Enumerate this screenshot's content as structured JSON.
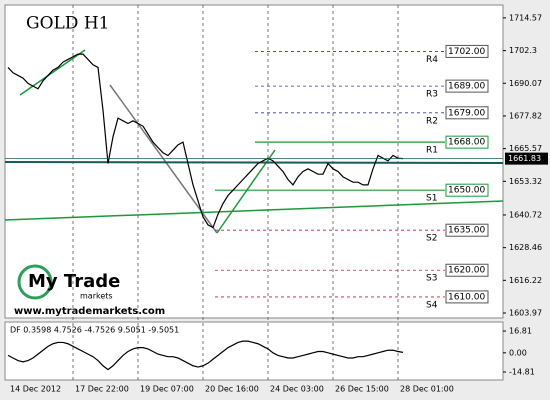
{
  "chart_data": {
    "type": "line",
    "title": "GOLD H1",
    "watermark": {
      "brand": "My Trade",
      "sub": "markets",
      "url": "www.mytrademarkets.com"
    },
    "price": {
      "name": "GOLD",
      "color": "#000000",
      "values": [
        1696,
        1694,
        1693,
        1692,
        1690,
        1689,
        1688,
        1691,
        1693,
        1695,
        1696,
        1698,
        1699,
        1700,
        1701,
        1701,
        1699,
        1697,
        1696,
        1680,
        1660,
        1670,
        1677,
        1676,
        1675,
        1676,
        1675,
        1674,
        1671,
        1668,
        1666,
        1664,
        1663,
        1665,
        1667,
        1668,
        1660,
        1652,
        1646,
        1640,
        1637,
        1636,
        1641,
        1645,
        1648,
        1650,
        1652,
        1654,
        1656,
        1658,
        1660,
        1661,
        1662,
        1661,
        1659,
        1657,
        1654,
        1652,
        1655,
        1657,
        1658,
        1657,
        1656,
        1656,
        1660,
        1658,
        1657,
        1655,
        1654,
        1653,
        1653,
        1652,
        1652,
        1658,
        1663,
        1662,
        1661,
        1663,
        1662,
        1661.83
      ]
    },
    "xlim": [
      -0.6,
      99
    ],
    "xticks": [
      {
        "value": 0,
        "label": "14 Dec 2012"
      },
      {
        "value": 13,
        "label": "17 Dec 22:00"
      },
      {
        "value": 26,
        "label": "19 Dec 07:00"
      },
      {
        "value": 39,
        "label": "20 Dec 16:00"
      },
      {
        "value": 52,
        "label": "24 Dec 03:00"
      },
      {
        "value": 65,
        "label": "26 Dec 15:00"
      },
      {
        "value": 78,
        "label": "28 Dec 01:00"
      }
    ],
    "ylim": [
      1602.1,
      1719.4
    ],
    "yticks": [
      1714.57,
      1702.3,
      {
        "value": 1690.07,
        "label": "1690.07"
      },
      1677.82,
      1665.57,
      1653.32,
      {
        "value": 1640.72,
        "label": "1640.72"
      },
      1628.46,
      1616.22,
      1603.97
    ],
    "last": 1661.83,
    "levels": {
      "names": [
        "R4",
        "R3",
        "R2",
        "R1",
        "S1",
        "S2",
        "S3",
        "S4"
      ],
      "values": [
        1702,
        1689,
        1679,
        1668,
        1650,
        1635,
        1620,
        1610
      ],
      "value_labels": [
        "1702.00",
        "1689.00",
        "1679.00",
        "1668.00",
        "1650.00",
        "1635.00",
        "1620.00",
        "1610.00"
      ],
      "colors": [
        "#1f3fbf",
        "#1f3fbf",
        "#1f3fbf",
        "#1a9a3a",
        "#1a9a3a",
        "#c02020",
        "#c02020",
        "#c02020"
      ]
    },
    "indicator": {
      "label": "DF 0.3598 4.7526 -4.7526 9.5051 -9.5051",
      "color": "#000000",
      "values": [
        -2,
        -4,
        -6,
        -7,
        -6,
        -4,
        -1,
        2,
        5,
        7,
        8,
        8,
        7,
        5,
        3,
        1,
        -1,
        -3,
        -6,
        -10,
        -13,
        -10,
        -6,
        -2,
        1,
        3,
        4,
        4,
        3,
        1,
        -1,
        -2,
        -3,
        -3,
        -4,
        -6,
        -8,
        -10,
        -11,
        -10,
        -8,
        -5,
        -2,
        1,
        4,
        6,
        8,
        9,
        9,
        8,
        7,
        5,
        3,
        0,
        -2,
        -3,
        -4,
        -4,
        -3,
        -2,
        -1,
        0,
        1,
        1,
        0,
        -1,
        -2,
        -3,
        -4,
        -4,
        -3,
        -3,
        -2,
        -1,
        0,
        1,
        2,
        2,
        1,
        0.36
      ],
      "ylim": [
        -21,
        23.8
      ],
      "yticks": [
        16.81,
        {
          "value": 0,
          "label": "0.00"
        },
        -14.81
      ]
    }
  }
}
